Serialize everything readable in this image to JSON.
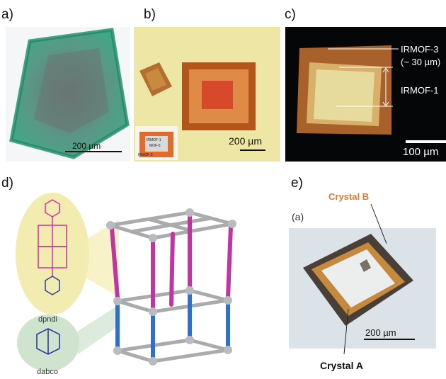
{
  "panels": {
    "a": {
      "label": "a)",
      "scale": "200 µm"
    },
    "b": {
      "label": "b)",
      "scale": "200 µm",
      "inset": [
        "IRMOF-1",
        "MOF-5",
        "IRMOF-3"
      ]
    },
    "c": {
      "label": "c)",
      "scale": "100 µm",
      "ann": [
        "IRMOF-3",
        "(~ 30 µm)",
        "IRMOF-1"
      ]
    },
    "d": {
      "label": "d)",
      "ligand1": "dpndi",
      "ligand2": "dabco"
    },
    "e": {
      "label": "e)",
      "sub": "(a)",
      "crystalB": "Crystal B",
      "crystalA": "Crystal A",
      "scale": "200 µm"
    }
  },
  "colors": {
    "green_crystal": "#2fa37d",
    "ligand_pink": "#d8309a",
    "ligand_blue": "#2d3d9a",
    "pillar_magenta": "#c0359f",
    "pillar_blue": "#2f6fd0",
    "crystalB_orange": "#e8762a"
  }
}
